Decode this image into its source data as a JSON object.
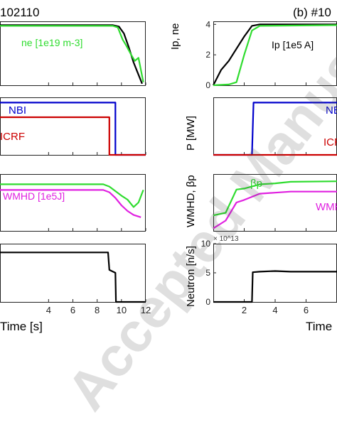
{
  "chart_data": [
    {
      "type": "line",
      "shot_label": "102110",
      "xlim": [
        0,
        12
      ],
      "xlabel": "Time [s]",
      "xticks": [
        4,
        6,
        8,
        10,
        12
      ],
      "panels": [
        {
          "series": [
            {
              "name": "",
              "color": "#000000",
              "x": [
                0,
                6,
                8.5,
                9.3,
                9.8,
                10.2,
                10.6,
                11,
                11.3,
                11.7
              ],
              "y": [
                3.95,
                3.95,
                3.95,
                3.95,
                3.85,
                3.4,
                2.5,
                1.5,
                0.9,
                0.1
              ]
            },
            {
              "name": "ne [1e19 m-3]",
              "color": "#2fdc2f",
              "x": [
                0,
                6,
                8.5,
                9.3,
                9.7,
                10.1,
                10.4,
                10.8,
                11.1,
                11.4,
                11.8
              ],
              "y": [
                3.9,
                3.9,
                3.9,
                3.9,
                3.8,
                3.0,
                2.6,
                2.0,
                1.6,
                1.8,
                0.2
              ]
            }
          ],
          "legend_text": "ne [1e19 m-3]"
        },
        {
          "series": [
            {
              "name": "NBI",
              "color": "#0000cc",
              "x": [
                0,
                9.5,
                9.5,
                12
              ],
              "y": [
                1,
                1,
                0,
                0
              ]
            },
            {
              "name": "ICRF",
              "color": "#cc0000",
              "x": [
                0,
                9.0,
                9.0,
                12
              ],
              "y": [
                0.72,
                0.72,
                0,
                0
              ]
            }
          ],
          "labels": [
            "NBI",
            "ICRF"
          ]
        },
        {
          "series": [
            {
              "name": "",
              "color": "#2fdc2f",
              "x": [
                0,
                8.5,
                9.0,
                9.5,
                10.0,
                10.5,
                11.0,
                11.4,
                11.8
              ],
              "y": [
                0.82,
                0.82,
                0.78,
                0.7,
                0.62,
                0.55,
                0.42,
                0.5,
                0.72
              ]
            },
            {
              "name": "WMHD [1e5J]",
              "color": "#e020e0",
              "x": [
                0,
                8.5,
                9.0,
                9.5,
                10.0,
                10.5,
                11.0,
                11.6
              ],
              "y": [
                0.72,
                0.72,
                0.68,
                0.58,
                0.45,
                0.35,
                0.28,
                0.24
              ]
            }
          ],
          "legend_text": "WMHD [1e5J]"
        },
        {
          "series": [
            {
              "name": "",
              "color": "#000000",
              "x": [
                0,
                8.9,
                9.0,
                9.5,
                9.55,
                12
              ],
              "y": [
                0.85,
                0.85,
                0.55,
                0.5,
                0,
                0
              ]
            }
          ]
        }
      ]
    },
    {
      "type": "line",
      "shot_label": "(b) #10",
      "xlim": [
        0,
        8
      ],
      "xlabel": "Time",
      "xticks": [
        2,
        4,
        6
      ],
      "panels": [
        {
          "ylabel": "Ip, ne",
          "yticks": [
            0,
            2,
            4
          ],
          "ylim": [
            0,
            4.2
          ],
          "series": [
            {
              "name": "Ip [1e5 A]",
              "color": "#000000",
              "x": [
                0,
                0.5,
                1.0,
                1.5,
                2.0,
                2.5,
                3.0,
                8
              ],
              "y": [
                0,
                1.0,
                1.6,
                2.4,
                3.2,
                3.9,
                4.0,
                4.0
              ]
            },
            {
              "name": "",
              "color": "#2fdc2f",
              "x": [
                0,
                1.0,
                1.5,
                2.0,
                2.5,
                3.0,
                8
              ],
              "y": [
                0,
                0.05,
                0.2,
                2.0,
                3.6,
                3.9,
                3.95
              ]
            }
          ],
          "legend_text": "Ip [1e5 A]"
        },
        {
          "ylabel": "P [MW]",
          "series": [
            {
              "name": "NBI",
              "color": "#0000cc",
              "x": [
                0,
                2.5,
                2.6,
                8
              ],
              "y": [
                0,
                0,
                1,
                1
              ]
            },
            {
              "name": "ICRF",
              "color": "#cc0000",
              "x": [
                0,
                8
              ],
              "y": [
                0,
                0
              ]
            }
          ],
          "labels": [
            "NBI",
            "ICRF"
          ]
        },
        {
          "ylabel": "WMHD, βp",
          "series": [
            {
              "name": "βp",
              "color": "#2fdc2f",
              "x": [
                0,
                0.8,
                1.5,
                2.0,
                3.0,
                4.0,
                5.0,
                8
              ],
              "y": [
                0.3,
                0.35,
                0.8,
                0.82,
                0.9,
                0.92,
                0.95,
                0.96
              ]
            },
            {
              "name": "WMHD",
              "color": "#e020e0",
              "x": [
                0,
                0.8,
                1.5,
                2.0,
                3.0,
                4.0,
                5.0,
                8
              ],
              "y": [
                0.05,
                0.2,
                0.55,
                0.6,
                0.72,
                0.74,
                0.76,
                0.76
              ]
            }
          ],
          "labels": [
            "βp",
            "WMHD"
          ]
        },
        {
          "ylabel": "Neutron [n/s]",
          "y_scale_note": "× 10^13",
          "yticks": [
            0,
            5,
            10
          ],
          "ylim": [
            0,
            10
          ],
          "series": [
            {
              "name": "",
              "color": "#000000",
              "x": [
                0,
                2.5,
                2.55,
                3.0,
                4.0,
                5.0,
                8
              ],
              "y": [
                0,
                0,
                5.1,
                5.2,
                5.3,
                5.2,
                5.2
              ]
            }
          ]
        }
      ]
    }
  ],
  "watermark": "Accepted Manuscript",
  "text": {
    "left_tick_labels": [
      "4",
      "6",
      "8",
      "10",
      "12"
    ],
    "right_tick_labels": [
      "2",
      "4",
      "6"
    ]
  }
}
